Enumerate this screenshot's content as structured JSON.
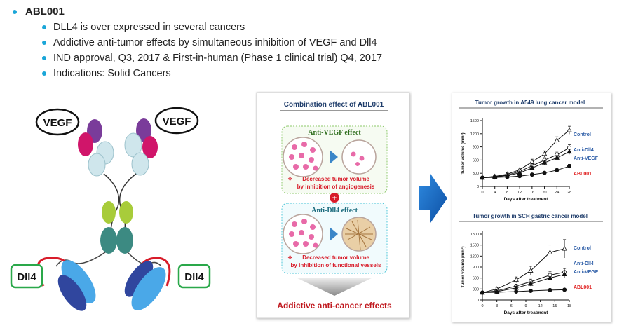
{
  "bullets": {
    "title": "ABL001",
    "items": [
      "DLL4 is over expressed in several cancers",
      "Addictive anti-tumor effects by simultaneous inhibition of VEGF and Dll4",
      "IND approval, Q3, 2017 & First-in-human (Phase 1 clinical trial) Q4, 2017",
      "Indications: Solid Cancers"
    ]
  },
  "antibody": {
    "vegf_left": "VEGF",
    "vegf_right": "VEGF",
    "dll4_left": "Dll4",
    "dll4_right": "Dll4"
  },
  "combo": {
    "title": "Combination effect of ABL001",
    "vegf_panel_title": "Anti-VEGF effect",
    "vegf_note_1": "Decreased tumor volume",
    "vegf_note_2": "by inhibition of angiogenesis",
    "plus": "+",
    "dll4_panel_title": "Anti-Dll4 effect",
    "dll4_note_1": "Decreased tumor volume",
    "dll4_note_2": "by inhibition of functional vessels",
    "note_marker": "❖",
    "footer": "Addictive anti-cancer effects"
  },
  "colors": {
    "bullet": "#1aa6d8",
    "arrow": "#1565c0",
    "control": "#2f5fa8",
    "abl001": "#e02020",
    "vegf_border": "#8cc96a",
    "dll4_border": "#4bc6d8",
    "footer": "#c0181e"
  },
  "chart_data": [
    {
      "type": "line",
      "title": "Tumor growth in A549 lung cancer model",
      "xlabel": "Days after treatment",
      "ylabel": "Tumor volume (mm³)",
      "x": [
        0,
        4,
        8,
        12,
        16,
        20,
        24,
        28
      ],
      "xticks": [
        "0",
        "4",
        "8",
        "12",
        "16",
        "20",
        "24",
        "28"
      ],
      "yticks": [
        "0",
        "300",
        "600",
        "900",
        "1200",
        "1500"
      ],
      "xlim": [
        0,
        28
      ],
      "ylim": [
        0,
        1500
      ],
      "series": [
        {
          "name": "Control",
          "marker": "open-triangle",
          "values": [
            200,
            230,
            280,
            380,
            560,
            740,
            1050,
            1280
          ],
          "err": [
            20,
            20,
            30,
            40,
            60,
            70,
            80,
            90
          ]
        },
        {
          "name": "Anti-Dll4",
          "marker": "open-circle",
          "values": [
            200,
            220,
            260,
            340,
            470,
            600,
            720,
            880
          ],
          "err": [
            20,
            20,
            25,
            35,
            45,
            55,
            60,
            70
          ]
        },
        {
          "name": "Anti-VEGF",
          "marker": "filled-triangle",
          "values": [
            200,
            215,
            245,
            310,
            420,
            540,
            650,
            790
          ],
          "err": [
            20,
            20,
            25,
            30,
            40,
            50,
            55,
            60
          ]
        },
        {
          "name": "ABL001",
          "marker": "filled-circle",
          "values": [
            200,
            205,
            215,
            235,
            270,
            310,
            370,
            460
          ],
          "err": [
            15,
            15,
            15,
            20,
            25,
            30,
            35,
            45
          ]
        }
      ]
    },
    {
      "type": "line",
      "title": "Tumor growth in SCH gastric cancer model",
      "xlabel": "Days after treatment",
      "ylabel": "Tumor volume (mm³)",
      "x": [
        0,
        3,
        7,
        10,
        14,
        17
      ],
      "xticks": [
        "0",
        "3",
        "6",
        "9",
        "12",
        "15",
        "18"
      ],
      "yticks": [
        "0",
        "300",
        "600",
        "900",
        "1200",
        "1500",
        "1800"
      ],
      "xlim": [
        0,
        18
      ],
      "ylim": [
        0,
        1800
      ],
      "series": [
        {
          "name": "Control",
          "marker": "open-triangle",
          "values": [
            200,
            300,
            550,
            800,
            1300,
            1400
          ],
          "err": [
            20,
            30,
            80,
            120,
            200,
            250
          ]
        },
        {
          "name": "Anti-Dll4",
          "marker": "open-circle",
          "values": [
            200,
            250,
            380,
            500,
            680,
            760
          ],
          "err": [
            20,
            25,
            50,
            70,
            90,
            100
          ]
        },
        {
          "name": "Anti-VEGF",
          "marker": "filled-triangle",
          "values": [
            200,
            230,
            330,
            440,
            600,
            700
          ],
          "err": [
            20,
            25,
            45,
            60,
            80,
            90
          ]
        },
        {
          "name": "ABL001",
          "marker": "filled-circle",
          "values": [
            200,
            210,
            230,
            250,
            270,
            280
          ],
          "err": [
            15,
            15,
            20,
            20,
            25,
            25
          ]
        }
      ]
    }
  ]
}
